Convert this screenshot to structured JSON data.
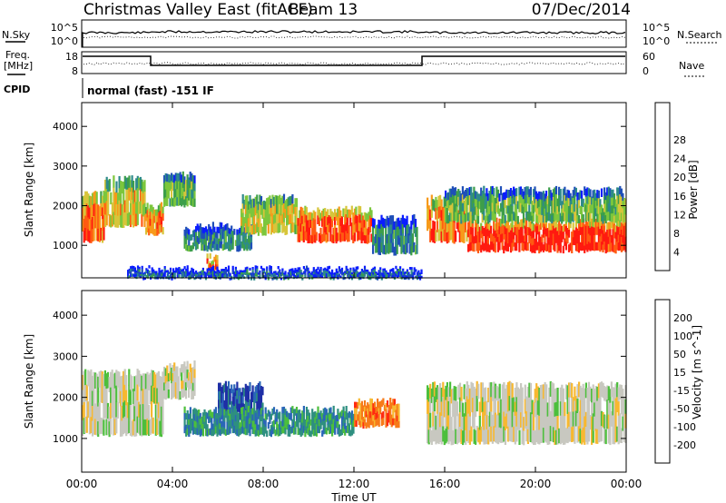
{
  "header": {
    "title": "Christmas Valley East (fitACF)",
    "beam": "Beam 13",
    "date": "07/Dec/2014"
  },
  "noise_panel": {
    "left_label": "N.Sky",
    "right_label": "N.Search",
    "left_ticks": [
      "10^5",
      "10^0"
    ],
    "right_ticks": [
      "10^5",
      "10^0"
    ]
  },
  "freq_panel": {
    "left_label_1": "Freq.",
    "left_label_2": "[MHz]",
    "right_label": "Nave",
    "left_ticks": [
      "18",
      "8"
    ],
    "right_ticks": [
      "60",
      "0"
    ]
  },
  "cpid": {
    "label": "CPID",
    "value": "normal (fast) -151 IF"
  },
  "chart_data": [
    {
      "type": "heatmap",
      "parameter": "Power",
      "ylabel": "Slant Range [km]",
      "xlabel": "",
      "yticks": [
        1000,
        2000,
        3000,
        4000
      ],
      "ylim": [
        180,
        4600
      ],
      "colorbar_label": "Power [dB]",
      "colorbar_ticks": [
        "4",
        "8",
        "12",
        "16",
        "20",
        "24",
        "28"
      ],
      "colorbar_colors": [
        "#0a1cff",
        "#1f4fb8",
        "#2e8a8a",
        "#3c9e4a",
        "#7cc63c",
        "#d7c53a",
        "#f79a1a",
        "#ff5a12",
        "#ff1a10"
      ],
      "echo_regions": [
        {
          "t_start": 0.0,
          "t_end": 1.0,
          "r_low": 1100,
          "r_high": 2300,
          "level": 0.82
        },
        {
          "t_start": 1.0,
          "t_end": 2.8,
          "r_low": 1500,
          "r_high": 2700,
          "level": 0.65
        },
        {
          "t_start": 2.8,
          "t_end": 3.6,
          "r_low": 1300,
          "r_high": 2000,
          "level": 0.78
        },
        {
          "t_start": 3.6,
          "t_end": 5.0,
          "r_low": 2000,
          "r_high": 2800,
          "level": 0.45
        },
        {
          "t_start": 4.5,
          "t_end": 7.5,
          "r_low": 900,
          "r_high": 1500,
          "level": 0.3
        },
        {
          "t_start": 5.5,
          "t_end": 6.0,
          "r_low": 250,
          "r_high": 700,
          "level": 0.85
        },
        {
          "t_start": 7.0,
          "t_end": 9.5,
          "r_low": 1300,
          "r_high": 2200,
          "level": 0.6
        },
        {
          "t_start": 9.5,
          "t_end": 12.8,
          "r_low": 1100,
          "r_high": 1900,
          "level": 0.88
        },
        {
          "t_start": 12.8,
          "t_end": 14.8,
          "r_low": 800,
          "r_high": 1700,
          "level": 0.3
        },
        {
          "t_start": 15.2,
          "t_end": 17.0,
          "r_low": 1100,
          "r_high": 2200,
          "level": 0.8
        },
        {
          "t_start": 17.0,
          "t_end": 24.0,
          "r_low": 850,
          "r_high": 1600,
          "level": 0.95
        },
        {
          "t_start": 16.0,
          "t_end": 24.0,
          "r_low": 1600,
          "r_high": 2400,
          "level": 0.45
        },
        {
          "t_start": 2.0,
          "t_end": 15.0,
          "r_low": 180,
          "r_high": 400,
          "level": 0.2
        }
      ]
    },
    {
      "type": "heatmap",
      "parameter": "Velocity",
      "ylabel": "Slant Range [km]",
      "xlabel": "Time UT",
      "yticks": [
        1000,
        2000,
        3000,
        4000
      ],
      "ylim": [
        180,
        4600
      ],
      "colorbar_label": "Velocity [m s^-1]",
      "colorbar_ticks": [
        "200",
        "100",
        "50",
        "15",
        "-15",
        "-50",
        "-100",
        "-200"
      ],
      "colorbar_colors": [
        "#1e2fa6",
        "#2a66b8",
        "#2e8f80",
        "#4cbf3c",
        "#c8c8c0",
        "#f7b830",
        "#f77a18",
        "#ff2a10",
        "#ff0000"
      ],
      "echo_regions": [
        {
          "t_start": 0.0,
          "t_end": 3.6,
          "r_low": 1100,
          "r_high": 2600,
          "v": "ground"
        },
        {
          "t_start": 3.6,
          "t_end": 5.0,
          "r_low": 2000,
          "r_high": 2800,
          "v": "ground"
        },
        {
          "t_start": 6.0,
          "t_end": 8.0,
          "r_low": 1500,
          "r_high": 2300,
          "v": "toward_high"
        },
        {
          "t_start": 4.5,
          "t_end": 12.0,
          "r_low": 1100,
          "r_high": 1700,
          "v": "toward_mid"
        },
        {
          "t_start": 12.0,
          "t_end": 14.0,
          "r_low": 1300,
          "r_high": 1900,
          "v": "away_mid"
        },
        {
          "t_start": 15.2,
          "t_end": 24.0,
          "r_low": 900,
          "r_high": 2300,
          "v": "ground"
        }
      ]
    }
  ],
  "x_axis": {
    "ticks": [
      "00:00",
      "04:00",
      "08:00",
      "12:00",
      "16:00",
      "20:00",
      "00:00"
    ],
    "label": "Time UT"
  }
}
